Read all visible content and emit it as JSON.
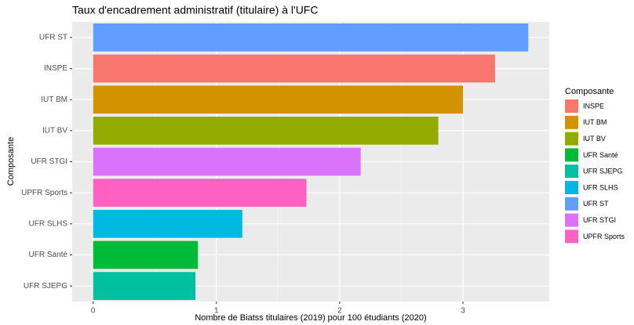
{
  "chart_data": {
    "type": "bar",
    "orientation": "horizontal",
    "title": "Taux d'encadrement administratif (titulaire) à l'UFC",
    "x_label": "Nombre de Biatss titulaires (2019) pour 100 étudiants (2020)",
    "y_label": "Composante",
    "categories": [
      "UFR ST",
      "INSPE",
      "IUT BM",
      "IUT BV",
      "UFR STGI",
      "UPFR Sports",
      "UFR SLHS",
      "UFR Santé",
      "UFR SJEPG"
    ],
    "values": [
      3.53,
      3.26,
      3.0,
      2.8,
      2.17,
      1.73,
      1.21,
      0.85,
      0.83
    ],
    "xlim": [
      -0.17,
      3.7
    ],
    "xticks": [
      0,
      1,
      2,
      3
    ],
    "grid": true,
    "legend": {
      "title": "Composante",
      "position": "right",
      "entries": [
        {
          "name": "INSPE",
          "color": "#F8766D"
        },
        {
          "name": "IUT BM",
          "color": "#D39200"
        },
        {
          "name": "IUT BV",
          "color": "#93AA00"
        },
        {
          "name": "UFR Santé",
          "color": "#00BA38"
        },
        {
          "name": "UFR SJEPG",
          "color": "#00C19F"
        },
        {
          "name": "UFR SLHS",
          "color": "#00B9E3"
        },
        {
          "name": "UFR ST",
          "color": "#619CFF"
        },
        {
          "name": "UFR STGI",
          "color": "#DB72FB"
        },
        {
          "name": "UPFR Sports",
          "color": "#FF61C3"
        }
      ]
    }
  }
}
